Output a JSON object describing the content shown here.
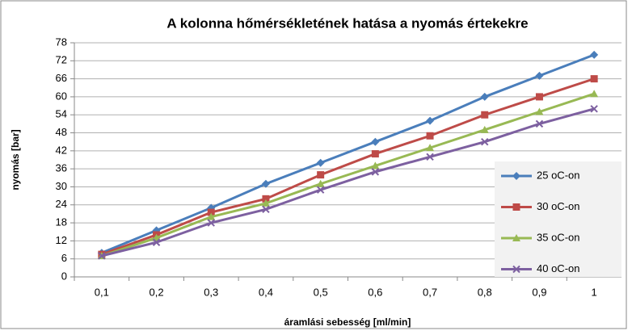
{
  "chart_data": {
    "type": "line",
    "title": "A kolonna hőmérsékletének hatása a nyomás értekekre",
    "xlabel": "áramlási sebesség [ml/min]",
    "ylabel": "nyomás [bar]",
    "categories": [
      "0,1",
      "0,2",
      "0,3",
      "0,4",
      "0,5",
      "0,6",
      "0,7",
      "0,8",
      "0,9",
      "1"
    ],
    "series": [
      {
        "name": "25 oC-on",
        "color": "#4a7ebb",
        "marker": "diamond",
        "values": [
          8,
          15.5,
          23,
          31,
          38,
          45,
          52,
          60,
          67,
          74
        ]
      },
      {
        "name": "30 oC-on",
        "color": "#be4b48",
        "marker": "square",
        "values": [
          7.5,
          14,
          21.5,
          26,
          34,
          41,
          47,
          54,
          60,
          66
        ]
      },
      {
        "name": "35 oC-on",
        "color": "#98b954",
        "marker": "triangle",
        "values": [
          7,
          13,
          20,
          24.5,
          31,
          37,
          43,
          49,
          55,
          61
        ]
      },
      {
        "name": "40 oC-on",
        "color": "#7d60a0",
        "marker": "x",
        "values": [
          7,
          11.5,
          18,
          22.5,
          29,
          35,
          40,
          45,
          51,
          56
        ]
      }
    ],
    "ylim": [
      0,
      78
    ],
    "yticks": [
      0,
      6,
      12,
      18,
      24,
      30,
      36,
      42,
      48,
      54,
      60,
      66,
      72,
      78
    ],
    "grid": true,
    "legend": "right"
  }
}
